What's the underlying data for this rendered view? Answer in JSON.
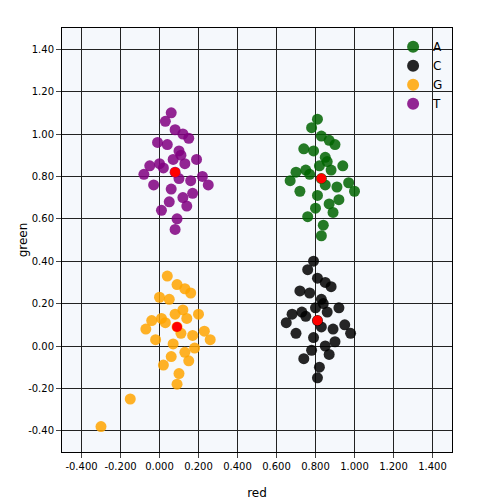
{
  "chart_data": {
    "type": "scatter",
    "x_label": "red",
    "y_label": "green",
    "xlim": [
      -0.5,
      1.5
    ],
    "ylim": [
      -0.5,
      1.5
    ],
    "xticks": [
      {
        "value": -0.4,
        "label": "-0.400"
      },
      {
        "value": -0.2,
        "label": "-0.200"
      },
      {
        "value": 0,
        "label": "0.000"
      },
      {
        "value": 0.2,
        "label": "0.200"
      },
      {
        "value": 0.4,
        "label": "0.400"
      },
      {
        "value": 0.6,
        "label": "0.600"
      },
      {
        "value": 0.8,
        "label": "0.800"
      },
      {
        "value": 1.0,
        "label": "1.000"
      },
      {
        "value": 1.2,
        "label": "1.200"
      },
      {
        "value": 1.4,
        "label": "1.400"
      }
    ],
    "yticks": [
      {
        "value": -0.4,
        "label": "-0.40"
      },
      {
        "value": -0.2,
        "label": "-0.20"
      },
      {
        "value": 0,
        "label": "0.00"
      },
      {
        "value": 0.2,
        "label": "0.20"
      },
      {
        "value": 0.4,
        "label": "0.40"
      },
      {
        "value": 0.6,
        "label": "0.60"
      },
      {
        "value": 0.8,
        "label": "0.80"
      },
      {
        "value": 1.0,
        "label": "1.00"
      },
      {
        "value": 1.2,
        "label": "1.20"
      },
      {
        "value": 1.4,
        "label": "1.40"
      }
    ],
    "grid": true,
    "legend": "upper right",
    "marker": "circle",
    "series": [
      {
        "name": "A",
        "color": "#006400",
        "x": [
          0.83,
          0.75,
          0.91,
          0.79,
          0.87,
          0.72,
          0.94,
          0.83,
          0.76,
          0.9,
          0.81,
          0.86,
          0.7,
          0.97,
          0.84,
          0.78,
          0.89,
          0.82,
          0.85,
          0.74,
          0.92,
          0.8,
          0.87,
          0.83,
          0.77,
          0.88,
          0.67,
          1.0,
          0.81,
          0.85
        ],
        "y": [
          0.79,
          0.83,
          0.75,
          0.92,
          0.67,
          0.73,
          0.85,
          0.99,
          0.61,
          0.95,
          0.71,
          0.87,
          0.82,
          0.77,
          0.57,
          1.03,
          0.63,
          0.85,
          0.76,
          0.93,
          0.69,
          0.65,
          0.97,
          0.52,
          0.81,
          0.83,
          0.78,
          0.73,
          1.07,
          0.89
        ],
        "center": {
          "x": 0.83,
          "y": 0.79
        }
      },
      {
        "name": "C",
        "color": "#000000",
        "x": [
          0.81,
          0.73,
          0.89,
          0.77,
          0.85,
          0.7,
          0.92,
          0.81,
          0.74,
          0.88,
          0.79,
          0.84,
          0.68,
          0.95,
          0.82,
          0.76,
          0.87,
          0.8,
          0.83,
          0.72,
          0.9,
          0.78,
          0.85,
          0.81,
          0.75,
          0.86,
          0.65,
          0.98,
          0.79,
          0.83
        ],
        "y": [
          0.12,
          0.16,
          0.08,
          0.25,
          0.0,
          0.06,
          0.18,
          0.32,
          -0.06,
          0.28,
          0.04,
          0.2,
          0.15,
          0.1,
          -0.1,
          0.36,
          -0.04,
          0.18,
          0.09,
          0.26,
          0.02,
          -0.02,
          0.3,
          -0.15,
          0.14,
          0.16,
          0.11,
          0.06,
          0.4,
          0.22
        ],
        "center": {
          "x": 0.81,
          "y": 0.12
        }
      },
      {
        "name": "G",
        "color": "#ffa500",
        "x": [
          0.09,
          0.01,
          0.17,
          0.05,
          0.13,
          -0.02,
          0.2,
          0.09,
          0.02,
          0.16,
          0.07,
          0.12,
          -0.04,
          0.23,
          0.1,
          0.04,
          0.15,
          0.08,
          0.11,
          0.0,
          0.18,
          0.06,
          0.13,
          0.09,
          0.03,
          0.14,
          -0.07,
          0.26,
          -0.15,
          -0.3
        ],
        "y": [
          0.09,
          0.13,
          0.05,
          0.22,
          -0.03,
          0.03,
          0.15,
          0.29,
          -0.09,
          0.25,
          0.01,
          0.17,
          0.12,
          0.07,
          -0.13,
          0.33,
          -0.07,
          0.15,
          0.06,
          0.23,
          -0.01,
          -0.05,
          0.27,
          -0.18,
          0.11,
          0.13,
          0.08,
          0.03,
          -0.25,
          -0.38
        ],
        "center": {
          "x": 0.09,
          "y": 0.09
        }
      },
      {
        "name": "T",
        "color": "#800080",
        "x": [
          0.08,
          0.0,
          0.16,
          0.04,
          0.12,
          -0.03,
          0.19,
          0.08,
          0.01,
          0.15,
          0.06,
          0.11,
          -0.05,
          0.22,
          0.09,
          0.03,
          0.14,
          0.07,
          0.1,
          -0.01,
          0.17,
          0.05,
          0.12,
          0.08,
          0.02,
          0.13,
          -0.08,
          0.25,
          0.06,
          0.1
        ],
        "y": [
          0.82,
          0.86,
          0.78,
          0.95,
          0.7,
          0.76,
          0.88,
          1.02,
          0.64,
          0.98,
          0.74,
          0.9,
          0.85,
          0.8,
          0.6,
          1.06,
          0.66,
          0.88,
          0.79,
          0.96,
          0.72,
          0.68,
          1.0,
          0.55,
          0.84,
          0.86,
          0.81,
          0.76,
          1.1,
          0.92
        ],
        "center": {
          "x": 0.08,
          "y": 0.82
        }
      }
    ]
  }
}
